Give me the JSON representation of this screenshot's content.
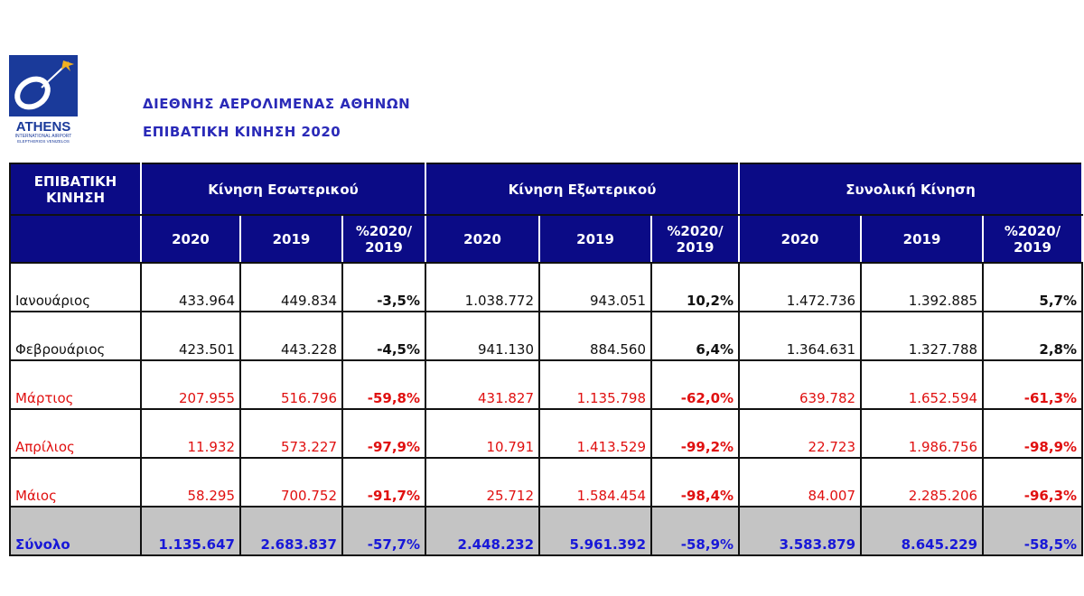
{
  "header": {
    "line1": "ΔΙΕΘΝΗΣ ΑΕΡΟΛΙΜΕΝΑΣ ΑΘΗΝΩΝ",
    "line2": "ΕΠΙΒΑΤΙΚΗ ΚΙΝΗΣΗ 2020",
    "logo_text": "ATHENS INTERNATIONAL AIRPORT ELEFTHERIOS VENIZELOS"
  },
  "table": {
    "corner": "ΕΠΙΒΑΤΙΚΗ ΚΙΝΗΣΗ",
    "groups": [
      "Κίνηση Εσωτερικού",
      "Κίνηση Εξωτερικού",
      "Συνολική Κίνηση"
    ],
    "subheaders": [
      "2020",
      "2019",
      "%2020/ 2019"
    ],
    "rows": [
      {
        "month": "Ιανουάριος",
        "red": false,
        "values": [
          "433.964",
          "449.834",
          "-3,5%",
          "1.038.772",
          "943.051",
          "10,2%",
          "1.472.736",
          "1.392.885",
          "5,7%"
        ]
      },
      {
        "month": "Φεβρουάριος",
        "red": false,
        "values": [
          "423.501",
          "443.228",
          "-4,5%",
          "941.130",
          "884.560",
          "6,4%",
          "1.364.631",
          "1.327.788",
          "2,8%"
        ]
      },
      {
        "month": "Μάρτιος",
        "red": true,
        "values": [
          "207.955",
          "516.796",
          "-59,8%",
          "431.827",
          "1.135.798",
          "-62,0%",
          "639.782",
          "1.652.594",
          "-61,3%"
        ]
      },
      {
        "month": "Απρίλιος",
        "red": true,
        "values": [
          "11.932",
          "573.227",
          "-97,9%",
          "10.791",
          "1.413.529",
          "-99,2%",
          "22.723",
          "1.986.756",
          "-98,9%"
        ]
      },
      {
        "month": "Μάιος",
        "red": true,
        "values": [
          "58.295",
          "700.752",
          "-91,7%",
          "25.712",
          "1.584.454",
          "-98,4%",
          "84.007",
          "2.285.206",
          "-96,3%"
        ]
      }
    ],
    "total": {
      "month": "Σύνολο",
      "values": [
        "1.135.647",
        "2.683.837",
        "-57,7%",
        "2.448.232",
        "5.961.392",
        "-58,9%",
        "3.583.879",
        "8.645.229",
        "-58,5%"
      ]
    }
  }
}
